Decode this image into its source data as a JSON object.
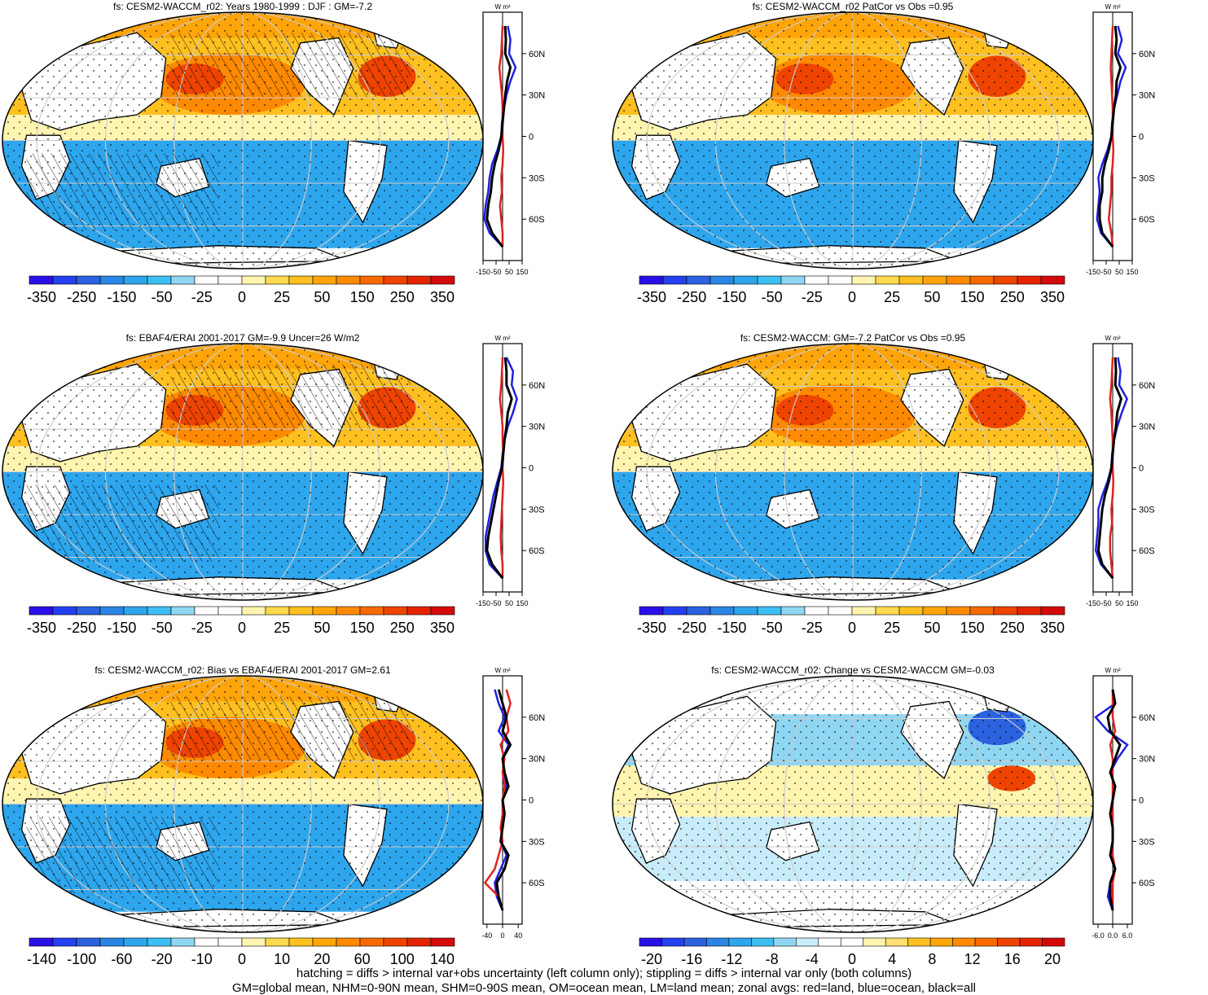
{
  "palettes": {
    "main": [
      "#2a10e8",
      "#2440f0",
      "#2a62e0",
      "#2a86e6",
      "#2ea6ee",
      "#3cbff2",
      "#8fd6f2",
      "#ffffff",
      "#ffffff",
      "#fff4b0",
      "#ffd94e",
      "#ffc020",
      "#ffa50a",
      "#ff8a00",
      "#f86a00",
      "#ee4400",
      "#e42400",
      "#d40a0a"
    ],
    "small": [
      "#2a10e8",
      "#2440f0",
      "#2a62e0",
      "#2a86e6",
      "#2ea6ee",
      "#3cbff2",
      "#8fd6f2",
      "#c8ecfa",
      "#ffffff",
      "#ffffff",
      "#fff4b0",
      "#ffe070",
      "#ffc020",
      "#ffa50a",
      "#ff8a00",
      "#f86a00",
      "#ee4400",
      "#e42400",
      "#d40a0a"
    ]
  },
  "colors": {
    "land": "#e02020",
    "ocean": "#2020e0",
    "all": "#000000"
  },
  "chart_data": [
    {
      "type": "heatmap",
      "title": "fs: CESM2-WACCM_r02: Years 1980-1999 : DJF : GM=-7.2",
      "colorbar_labels": [
        "-350",
        "-250",
        "-150",
        "-50",
        "-25",
        "0",
        "25",
        "50",
        "150",
        "250",
        "350"
      ],
      "palette": "main",
      "hatching": true,
      "zonal_profile": {
        "units": "W m²",
        "xticks": [
          "-150",
          "-50",
          "50",
          "150"
        ],
        "xrange": [
          -150,
          150
        ],
        "yticks": [
          "60N",
          "30N",
          "0",
          "30S",
          "60S"
        ],
        "lat": [
          80,
          70,
          60,
          50,
          40,
          30,
          20,
          10,
          0,
          -10,
          -20,
          -30,
          -40,
          -50,
          -60,
          -70,
          -80
        ],
        "ocean": [
          40,
          60,
          50,
          100,
          60,
          30,
          10,
          -5,
          -10,
          -40,
          -80,
          -100,
          -110,
          -130,
          -140,
          -100,
          0
        ],
        "land": [
          0,
          -5,
          -10,
          -25,
          -15,
          -5,
          0,
          0,
          0,
          5,
          0,
          -10,
          -5,
          -20,
          -10,
          0,
          0
        ],
        "all": [
          20,
          25,
          20,
          60,
          35,
          20,
          10,
          0,
          -10,
          -30,
          -60,
          -80,
          -90,
          -110,
          -120,
          -80,
          0
        ]
      }
    },
    {
      "type": "heatmap",
      "title": "fs: CESM2-WACCM_r02 PatCor vs Obs =0.95",
      "colorbar_labels": [
        "-350",
        "-250",
        "-150",
        "-50",
        "-25",
        "0",
        "25",
        "50",
        "150",
        "250",
        "350"
      ],
      "palette": "main",
      "hatching": false,
      "zonal_profile": {
        "units": "W m²",
        "xticks": [
          "-150",
          "-50",
          "50",
          "150"
        ],
        "xrange": [
          -150,
          150
        ],
        "yticks": [
          "60N",
          "30N",
          "0",
          "30S",
          "60S"
        ],
        "lat": [
          80,
          70,
          60,
          50,
          40,
          30,
          20,
          10,
          0,
          -10,
          -20,
          -30,
          -40,
          -50,
          -60,
          -70,
          -80
        ],
        "ocean": [
          40,
          70,
          40,
          100,
          60,
          35,
          10,
          -5,
          -10,
          -40,
          -80,
          -110,
          -100,
          -110,
          -120,
          -90,
          0
        ],
        "land": [
          0,
          -5,
          -10,
          -15,
          -10,
          -5,
          0,
          0,
          0,
          5,
          0,
          -10,
          -10,
          -20,
          -30,
          -10,
          0
        ],
        "all": [
          20,
          30,
          20,
          60,
          30,
          25,
          10,
          0,
          -10,
          -30,
          -60,
          -80,
          -80,
          -100,
          -100,
          -80,
          0
        ]
      }
    },
    {
      "type": "heatmap",
      "title": "fs: EBAF4/ERAI 2001-2017 GM=-9.9 Uncer=26 W/m2",
      "colorbar_labels": [
        "-350",
        "-250",
        "-150",
        "-50",
        "-25",
        "0",
        "25",
        "50",
        "150",
        "250",
        "350"
      ],
      "palette": "main",
      "hatching": true,
      "zonal_profile": {
        "units": "W m²",
        "xticks": [
          "-150",
          "-50",
          "50",
          "150"
        ],
        "xrange": [
          -150,
          150
        ],
        "yticks": [
          "60N",
          "30N",
          "0",
          "30S",
          "60S"
        ],
        "lat": [
          80,
          70,
          60,
          50,
          40,
          30,
          20,
          10,
          0,
          -10,
          -20,
          -30,
          -40,
          -50,
          -60,
          -70,
          -80
        ],
        "ocean": [
          30,
          80,
          70,
          110,
          80,
          40,
          15,
          0,
          -10,
          -40,
          -70,
          -90,
          -110,
          -130,
          -130,
          -100,
          0
        ],
        "land": [
          0,
          -5,
          -10,
          -20,
          -10,
          0,
          0,
          5,
          0,
          5,
          0,
          -5,
          -10,
          -15,
          -10,
          0,
          0
        ],
        "all": [
          20,
          30,
          30,
          70,
          40,
          30,
          15,
          5,
          -5,
          -30,
          -50,
          -70,
          -90,
          -110,
          -120,
          -80,
          0
        ]
      }
    },
    {
      "type": "heatmap",
      "title": "fs: CESM2-WACCM: GM=-7.2 PatCor vs Obs =0.95",
      "colorbar_labels": [
        "-350",
        "-250",
        "-150",
        "-50",
        "-25",
        "0",
        "25",
        "50",
        "150",
        "250",
        "350"
      ],
      "palette": "main",
      "hatching": false,
      "zonal_profile": {
        "units": "W m²",
        "xticks": [
          "-150",
          "-50",
          "50",
          "150"
        ],
        "xrange": [
          -150,
          150
        ],
        "yticks": [
          "60N",
          "30N",
          "0",
          "30S",
          "60S"
        ],
        "lat": [
          80,
          70,
          60,
          50,
          40,
          30,
          20,
          10,
          0,
          -10,
          -20,
          -30,
          -40,
          -50,
          -60,
          -70,
          -80
        ],
        "ocean": [
          40,
          60,
          50,
          110,
          70,
          35,
          10,
          -5,
          -10,
          -40,
          -80,
          -110,
          -110,
          -120,
          -130,
          -90,
          0
        ],
        "land": [
          0,
          -5,
          -10,
          -20,
          -10,
          -5,
          0,
          0,
          0,
          5,
          0,
          -10,
          -5,
          -20,
          -20,
          -10,
          0
        ],
        "all": [
          20,
          25,
          20,
          65,
          35,
          25,
          10,
          0,
          -10,
          -30,
          -60,
          -80,
          -90,
          -100,
          -110,
          -80,
          0
        ]
      }
    },
    {
      "type": "heatmap",
      "title": "fs: CESM2-WACCM_r02: Bias vs EBAF4/ERAI 2001-2017 GM=2.61",
      "colorbar_labels": [
        "-140",
        "-100",
        "-60",
        "-20",
        "-10",
        "0",
        "10",
        "20",
        "60",
        "100",
        "140"
      ],
      "palette": "main",
      "hatching": true,
      "zonal_profile": {
        "units": "W m²",
        "xticks": [
          "-40",
          "0",
          "40"
        ],
        "xrange": [
          -50,
          50
        ],
        "yticks": [
          "60N",
          "30N",
          "0",
          "30S",
          "60S"
        ],
        "lat": [
          80,
          70,
          60,
          50,
          40,
          30,
          20,
          10,
          0,
          -10,
          -20,
          -30,
          -40,
          -50,
          -60,
          -70,
          -80
        ],
        "ocean": [
          -20,
          -10,
          5,
          -10,
          15,
          0,
          5,
          10,
          0,
          5,
          0,
          -5,
          10,
          -5,
          -20,
          -15,
          0
        ],
        "land": [
          10,
          20,
          10,
          15,
          -5,
          5,
          0,
          5,
          0,
          0,
          -5,
          0,
          -10,
          -20,
          -45,
          -10,
          0
        ],
        "all": [
          -10,
          0,
          10,
          0,
          20,
          0,
          5,
          15,
          0,
          5,
          0,
          -5,
          15,
          5,
          -15,
          -10,
          0
        ]
      }
    },
    {
      "type": "heatmap",
      "title": "fs: CESM2-WACCM_r02: Change vs CESM2-WACCM GM=-0.03",
      "colorbar_labels": [
        "-20",
        "-16",
        "-12",
        "-8",
        "-4",
        "0",
        "4",
        "8",
        "12",
        "16",
        "20"
      ],
      "palette": "small",
      "hatching": false,
      "zonal_profile": {
        "units": "W m²",
        "xticks": [
          "-6.0",
          "0.0",
          "6.0"
        ],
        "xrange": [
          -8,
          8
        ],
        "yticks": [
          "60N",
          "30N",
          "0",
          "30S",
          "60S"
        ],
        "lat": [
          80,
          70,
          60,
          50,
          40,
          30,
          20,
          10,
          0,
          -10,
          -20,
          -30,
          -40,
          -50,
          -60,
          -70,
          -80
        ],
        "ocean": [
          0,
          1,
          -7,
          -2,
          6,
          2,
          -1,
          1,
          0,
          -1,
          0,
          0,
          -1,
          1,
          -1,
          -2,
          0
        ],
        "land": [
          0,
          0,
          0,
          1,
          -1,
          0,
          0,
          0,
          0,
          0,
          0,
          0,
          0,
          1,
          0,
          0,
          0
        ],
        "all": [
          0,
          1,
          -2,
          -1,
          3,
          1,
          -1,
          1,
          0,
          -1,
          0,
          0,
          -1,
          1,
          -1,
          -1,
          0
        ]
      }
    }
  ],
  "footer": {
    "line1": "hatching = diffs > internal var+obs uncertainty (left column only); stippling = diffs > internal var only (both columns)",
    "line2": "GM=global mean, NHM=0-90N mean, SHM=0-90S mean, OM=ocean mean, LM=land mean; zonal avgs: red=land, blue=ocean, black=all"
  }
}
